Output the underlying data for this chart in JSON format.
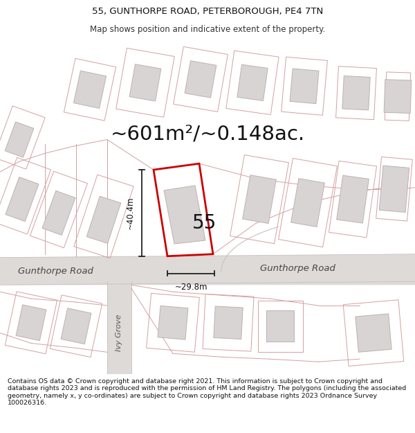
{
  "title_line1": "55, GUNTHORPE ROAD, PETERBOROUGH, PE4 7TN",
  "title_line2": "Map shows position and indicative extent of the property.",
  "area_text": "~601m²/~0.148ac.",
  "property_number": "55",
  "dim_height": "~40.4m",
  "dim_width": "~29.8m",
  "road_name_left": "Gunthorpe Road",
  "road_name_right": "Gunthorpe Road",
  "street_name_bottom": "Ivy Grove",
  "footer_text": "Contains OS data © Crown copyright and database right 2021. This information is subject to Crown copyright and database rights 2023 and is reproduced with the permission of HM Land Registry. The polygons (including the associated geometry, namely x, y co-ordinates) are subject to Crown copyright and database rights 2023 Ordnance Survey 100026316.",
  "map_bg": "#f2f0f0",
  "road_fill": "#e2dcdc",
  "plot_edge": "#d4a0a0",
  "bldg_fill": "#d8d4d4",
  "bldg_edge": "#bfb0b0",
  "highlight_edge": "#cc0000",
  "highlight_fill": "#ffffff",
  "dim_color": "#222222",
  "title_fontsize": 9.5,
  "subtitle_fontsize": 8.5,
  "area_fontsize": 21,
  "number_fontsize": 20,
  "dim_fontsize": 8.5,
  "road_label_fontsize": 9.5,
  "footer_fontsize": 6.8,
  "ivy_fontsize": 8
}
